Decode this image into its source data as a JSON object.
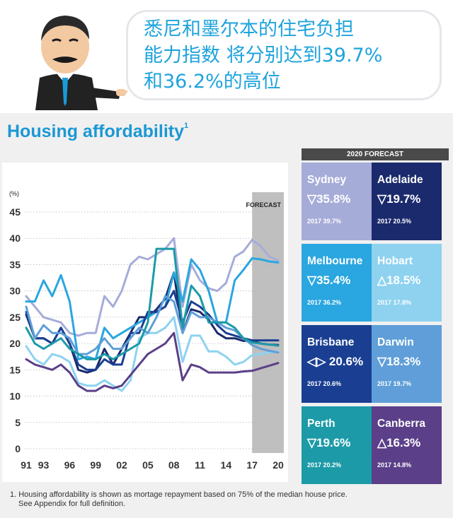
{
  "banner": {
    "headline_lines": [
      "悉尼和墨尔本的住宅负担",
      "能力指数 将分别达到39.7%",
      "和36.2%的高位"
    ]
  },
  "title": {
    "text": "Housing affordability",
    "sup": "1"
  },
  "forecast_panel": {
    "header": "2020 FORECAST",
    "tiles": [
      {
        "city": "Sydney",
        "value": "▽35.8%",
        "hist": "2017  39.7%",
        "color": "#a6acd8"
      },
      {
        "city": "Adelaide",
        "value": "▽19.7%",
        "hist": "2017  20.5%",
        "color": "#1a2a6c"
      },
      {
        "city": "Melbourne",
        "value": "▽35.4%",
        "hist": "2017  36.2%",
        "color": "#2aa6e0"
      },
      {
        "city": "Hobart",
        "value": "△18.5%",
        "hist": "2017  17.8%",
        "color": "#8ed2f0"
      },
      {
        "city": "Brisbane",
        "value": "◁▷ 20.6%",
        "hist": "2017  20.6%",
        "color": "#1a3f92"
      },
      {
        "city": "Darwin",
        "value": "▽18.3%",
        "hist": "2017  19.7%",
        "color": "#5f9ed8"
      },
      {
        "city": "Perth",
        "value": "▽19.6%",
        "hist": "2017  20.2%",
        "color": "#1c9aa8"
      },
      {
        "city": "Canberra",
        "value": "△16.3%",
        "hist": "2017  14.8%",
        "color": "#5b3f88"
      }
    ]
  },
  "footnote": {
    "line1": "1. Housing affordability is shown as mortage repayment based on 75% of the median house price.",
    "line2": "See Appendix for full definition."
  },
  "chart_data": {
    "type": "line",
    "ylabel": "(%)",
    "ylim": [
      0,
      45
    ],
    "yticks": [
      0,
      5,
      10,
      15,
      20,
      25,
      30,
      35,
      40,
      45
    ],
    "xlim": [
      1991,
      2020
    ],
    "xtick_labels": [
      {
        "x": 1991,
        "label": "91"
      },
      {
        "x": 1993,
        "label": "93"
      },
      {
        "x": 1996,
        "label": "96"
      },
      {
        "x": 1999,
        "label": "99"
      },
      {
        "x": 2002,
        "label": "02"
      },
      {
        "x": 2005,
        "label": "05"
      },
      {
        "x": 2008,
        "label": "08"
      },
      {
        "x": 2011,
        "label": "11"
      },
      {
        "x": 2014,
        "label": "14"
      },
      {
        "x": 2017,
        "label": "17"
      },
      {
        "x": 2020,
        "label": "20"
      }
    ],
    "forecast_region": {
      "from": 2017,
      "to": 2020,
      "label": "FORECAST"
    },
    "grid": "horizontal dotted",
    "x": [
      1991,
      1992,
      1993,
      1994,
      1995,
      1996,
      1997,
      1998,
      1999,
      2000,
      2001,
      2002,
      2003,
      2004,
      2005,
      2006,
      2007,
      2008,
      2009,
      2010,
      2011,
      2012,
      2013,
      2014,
      2015,
      2016,
      2017,
      2018,
      2019,
      2020
    ],
    "series": [
      {
        "color": "#a6acd8",
        "values": [
          29,
          27,
          25,
          24.5,
          24,
          22,
          21.5,
          22,
          22,
          29,
          27,
          30,
          35,
          36.5,
          36,
          37,
          38,
          40,
          27,
          35,
          32,
          30.5,
          30,
          31.5,
          36.5,
          37.5,
          39.7,
          38.5,
          36.5,
          35.8
        ]
      },
      {
        "color": "#1a2a6c",
        "values": [
          25.5,
          21,
          21,
          20,
          23,
          20,
          15,
          14.5,
          15,
          19,
          16,
          19,
          22,
          25,
          25,
          26.5,
          28.5,
          33.5,
          22,
          26.5,
          26,
          24.5,
          22,
          21,
          21,
          20.5,
          20.5,
          20,
          19.8,
          19.7
        ]
      },
      {
        "color": "#2aa6e0",
        "values": [
          28,
          28,
          32,
          29,
          33,
          28,
          17,
          17.5,
          17,
          23,
          21,
          22,
          23,
          24,
          25,
          26,
          27,
          33.5,
          28,
          36,
          34,
          30,
          24,
          24,
          32,
          34,
          36.2,
          36,
          35.6,
          35.4
        ]
      },
      {
        "color": "#8ed2f0",
        "values": [
          19.5,
          17,
          16,
          18,
          17.5,
          16.5,
          12.5,
          12,
          12,
          13,
          12,
          11,
          13,
          21,
          22,
          22,
          23,
          25,
          16.5,
          21.5,
          21.5,
          18.5,
          18.5,
          17.5,
          16,
          16.5,
          17.8,
          18,
          18.3,
          18.5
        ]
      },
      {
        "color": "#1a3f92",
        "values": [
          26,
          21,
          21,
          20,
          23,
          20,
          16,
          15,
          15,
          17,
          16,
          16,
          22,
          22,
          26,
          26,
          27,
          30,
          24,
          28,
          27,
          25.5,
          23.5,
          22,
          21.5,
          21,
          20.6,
          20.6,
          20.6,
          20.6
        ]
      },
      {
        "color": "#5f9ed8",
        "values": [
          27,
          21,
          23.5,
          22,
          22,
          21,
          18,
          18,
          19,
          21,
          19,
          19,
          21,
          23,
          22,
          25,
          29,
          28,
          22,
          26,
          25,
          25,
          24,
          23,
          22.5,
          21,
          19.7,
          19,
          18.6,
          18.3
        ]
      },
      {
        "color": "#1c9aa8",
        "values": [
          23,
          20,
          19,
          20,
          21,
          19,
          18,
          17,
          17,
          18,
          17,
          18,
          19,
          20,
          24,
          38,
          38,
          38,
          23,
          31,
          29,
          24,
          24,
          24,
          23,
          21,
          20.2,
          20,
          19.8,
          19.6
        ]
      },
      {
        "color": "#5b3f88",
        "values": [
          17,
          16,
          15.5,
          15,
          16,
          14.5,
          12,
          11,
          11,
          12,
          11.5,
          12,
          14,
          16,
          18,
          19,
          20,
          22,
          13,
          16,
          15.5,
          14.5,
          14.5,
          14.5,
          14.5,
          14.7,
          14.8,
          15.3,
          15.8,
          16.3
        ]
      }
    ]
  }
}
